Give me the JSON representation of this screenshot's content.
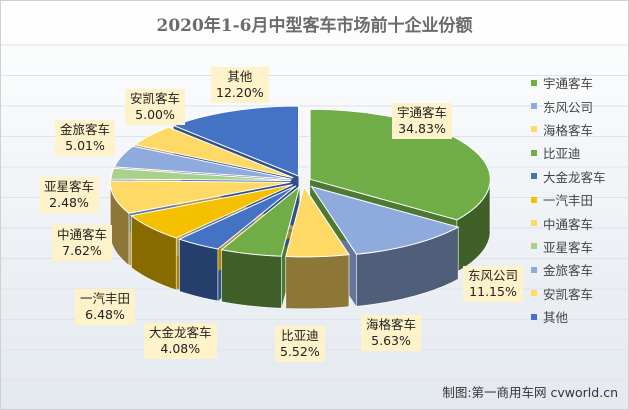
{
  "chart_data": {
    "type": "pie",
    "title": "2020年1-6月中型客车市场前十企业份额",
    "slices": [
      {
        "name": "宇通客车",
        "label": "34.83%",
        "value": 34.83,
        "color": "#70ad47"
      },
      {
        "name": "东风公司",
        "label": "11.15%",
        "value": 11.15,
        "color": "#8faadc"
      },
      {
        "name": "海格客车",
        "label": "5.63%",
        "value": 5.63,
        "color": "#ffd966"
      },
      {
        "name": "比亚迪",
        "label": "5.52%",
        "value": 5.52,
        "color": "#70ad47"
      },
      {
        "name": "大金龙客车",
        "label": "4.08%",
        "value": 4.08,
        "color": "#4472c4"
      },
      {
        "name": "一汽丰田",
        "label": "6.48%",
        "value": 6.48,
        "color": "#f5c000"
      },
      {
        "name": "中通客车",
        "label": "7.62%",
        "value": 7.62,
        "color": "#ffd966"
      },
      {
        "name": "亚星客车",
        "label": "2.48%",
        "value": 2.48,
        "color": "#a9d18e"
      },
      {
        "name": "金旅客车",
        "label": "5.01%",
        "value": 5.01,
        "color": "#8faadc"
      },
      {
        "name": "安凯客车",
        "label": "5.00%",
        "value": 5.0,
        "color": "#ffd966"
      },
      {
        "name": "其他",
        "label": "12.20%",
        "value": 12.2,
        "color": "#4472c4"
      }
    ],
    "legend_position": "right",
    "style": "3d-exploded-pie"
  },
  "source": "制图:第一商用车网 cvworld.cn"
}
